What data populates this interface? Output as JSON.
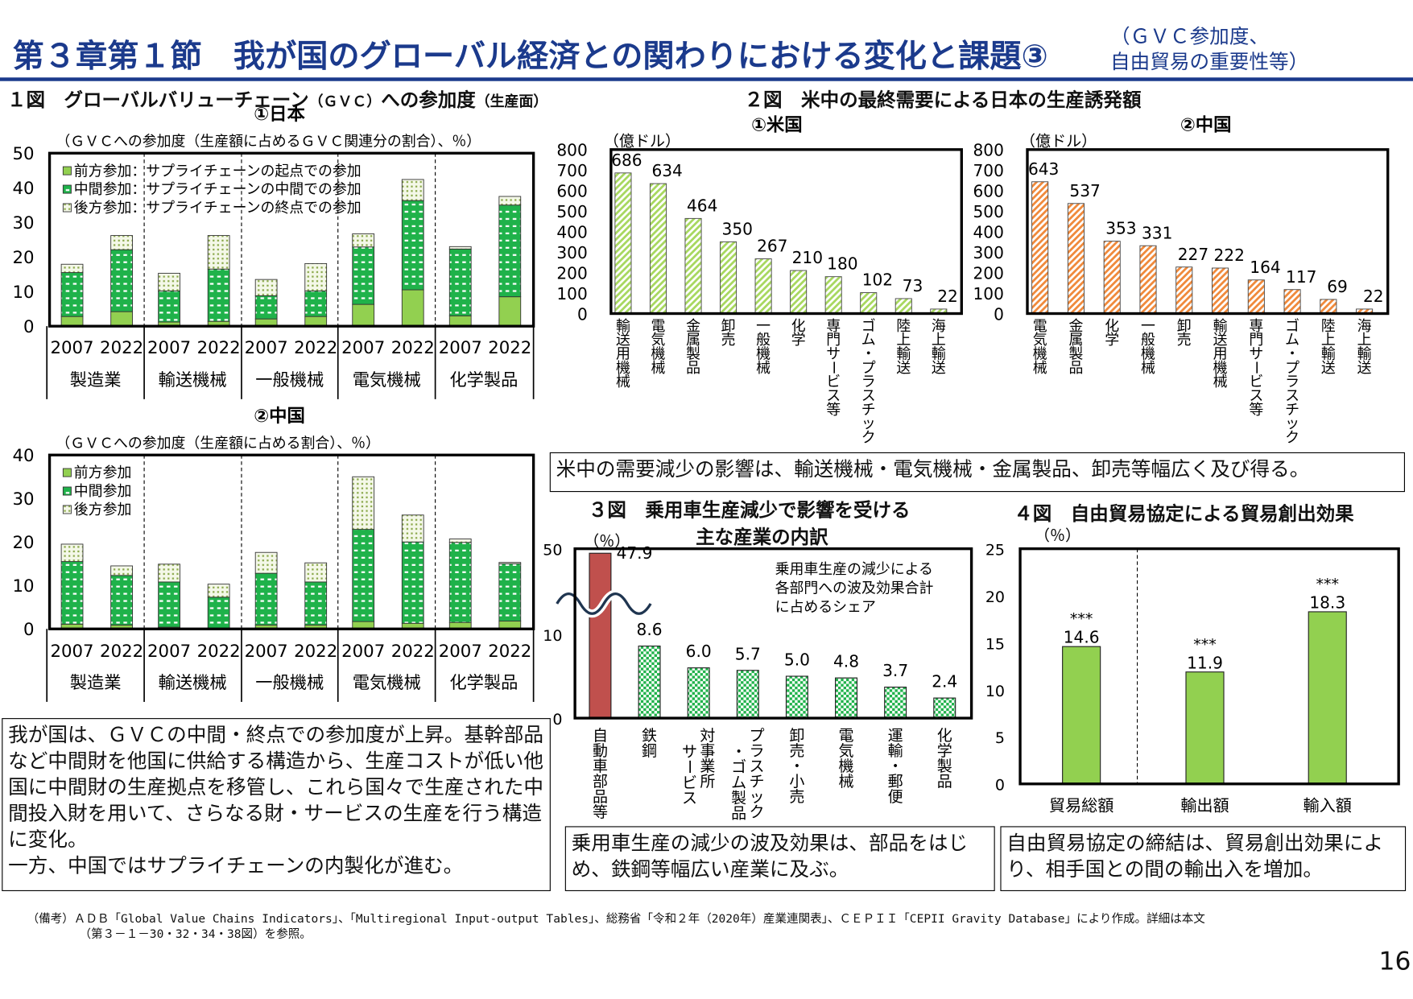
{
  "header": {
    "title": "第３章第１節　我が国のグローバル経済との関わりにおける変化と課題③",
    "subtitle_line1": "（ＧＶＣ参加度、",
    "subtitle_line2": "自由貿易の重要性等）"
  },
  "fig1": {
    "title": "１図　グローバルバリューチェーン",
    "title_small": "（ＧＶＣ）",
    "title2": "への参加度",
    "title_small2": "（生産面）"
  },
  "colors": {
    "forward": "#92d050",
    "middle": "#1fb24a",
    "backward": "#d8e8b0",
    "us_bar": "#a8d860",
    "cn_bar": "#f08a3c",
    "car_parts": "#c0504d",
    "fta": "#92d050",
    "navy": "#1b3a8c"
  },
  "text_boxes": {
    "gvc": "我が国は、ＧＶＣの中間・終点での参加度が上昇。基幹部品など中間財を他国に供給する構造から、生産コストが低い他国に中間財の生産拠点を移管し、これら国々で生産された中間投入財を用いて、さらなる財・サービスの生産を行う構造に変化。\n一方、中国ではサプライチェーンの内製化が進む。",
    "demand": "米中の需要減少の影響は、輸送機械・電気機械・金属製品、卸売等幅広く及び得る。",
    "car": "乗用車生産の減少の波及効果は、部品をはじめ、鉄鋼等幅広い産業に及ぶ。",
    "fta": "自由貿易協定の締結は、貿易創出効果により、相手国との間の輸出入を増加。"
  },
  "footnote": {
    "line1": "（備考）ＡＤＢ「Global Value Chains Indicators」、「Multiregional Input-output Tables」、総務省「令和２年（2020年）産業連関表」、ＣＥＰＩＩ「CEPII Gravity Database」により作成。詳細は本文",
    "line2": "（第３－１－30・32・34・38図）を参照。"
  },
  "page_number": "16",
  "chart_data": [
    {
      "id": "japan",
      "type": "bar",
      "stacked": true,
      "title": "①日本",
      "ylabel": "（ＧＶＣへの参加度（生産額に占めるＧＶＣ関連分の割合）、％）",
      "ylim": [
        0,
        50
      ],
      "yticks": [
        0,
        10,
        20,
        30,
        40,
        50
      ],
      "legend": [
        "前方参加：サプライチェーンの起点での参加",
        "中間参加：サプライチェーンの中間での参加",
        "後方参加：サプライチェーンの終点での参加"
      ],
      "legend_position": "top-left",
      "groups": [
        "製造業",
        "輸送機械",
        "一般機械",
        "電気機械",
        "化学製品"
      ],
      "years": [
        "2007",
        "2022"
      ],
      "series": [
        {
          "name": "前方参加",
          "values": [
            2.8,
            4.2,
            1.2,
            1.4,
            2.1,
            2.8,
            6.3,
            10.5,
            3.0,
            8.5
          ]
        },
        {
          "name": "中間参加",
          "values": [
            12.7,
            17.9,
            9.0,
            15.1,
            6.7,
            7.4,
            16.6,
            25.8,
            19.3,
            26.5
          ]
        },
        {
          "name": "後方参加",
          "values": [
            2.4,
            4.1,
            5.1,
            9.7,
            4.7,
            7.9,
            3.8,
            6.1,
            0.7,
            2.5
          ]
        }
      ]
    },
    {
      "id": "china",
      "type": "bar",
      "stacked": true,
      "title": "②中国",
      "ylabel": "（ＧＶＣへの参加度（生産額に占める割合）、％）",
      "ylim": [
        0,
        40
      ],
      "yticks": [
        0,
        10,
        20,
        30,
        40
      ],
      "legend": [
        "前方参加",
        "中間参加",
        "後方参加"
      ],
      "legend_position": "top-left",
      "groups": [
        "製造業",
        "輸送機械",
        "一般機械",
        "電気機械",
        "化学製品"
      ],
      "years": [
        "2007",
        "2022"
      ],
      "series": [
        {
          "name": "前方参加",
          "values": [
            1.1,
            0.9,
            0.4,
            0.1,
            0.9,
            0.9,
            1.7,
            1.3,
            1.5,
            1.8
          ]
        },
        {
          "name": "中間参加",
          "values": [
            14.4,
            11.4,
            10.4,
            7.2,
            11.9,
            9.9,
            21.2,
            18.7,
            18.4,
            13.2
          ]
        },
        {
          "name": "後方参加",
          "values": [
            4.0,
            2.2,
            4.1,
            3.0,
            4.8,
            4.4,
            12.1,
            6.2,
            0.8,
            0.3
          ]
        }
      ]
    },
    {
      "id": "fig2",
      "title": "２図　米中の最終需要による日本の生産誘発額",
      "charts": [
        {
          "id": "us",
          "type": "bar",
          "title": "①米国",
          "ylabel": "（億ドル）",
          "ylim": [
            0,
            800
          ],
          "yticks": [
            0,
            100,
            200,
            300,
            400,
            500,
            600,
            700,
            800
          ],
          "categories": [
            "輸送用機械",
            "電気機械",
            "金属製品",
            "卸売",
            "一般機械",
            "化学",
            "専門サービス等",
            "ゴム・プラスチック",
            "陸上輸送",
            "海上輸送"
          ],
          "values": [
            686,
            634,
            464,
            350,
            267,
            210,
            180,
            102,
            73,
            22
          ]
        },
        {
          "id": "cn",
          "type": "bar",
          "title": "②中国",
          "ylabel": "（億ドル）",
          "ylim": [
            0,
            800
          ],
          "yticks": [
            0,
            100,
            200,
            300,
            400,
            500,
            600,
            700,
            800
          ],
          "categories": [
            "電気機械",
            "金属製品",
            "化学",
            "一般機械",
            "卸売",
            "輸送用機械",
            "専門サービス等",
            "ゴム・プラスチック",
            "陸上輸送",
            "海上輸送"
          ],
          "values": [
            643,
            537,
            353,
            331,
            227,
            222,
            164,
            117,
            69,
            22
          ]
        }
      ]
    },
    {
      "id": "fig3",
      "type": "bar",
      "title": "３図　乗用車生産減少で影響を受ける",
      "title2": "主な産業の内訳",
      "ylabel": "（％）",
      "yticks": [
        0,
        10,
        50
      ],
      "axis_break": true,
      "annotation": "乗用車生産の減少による\n各部門への波及効果合計\nに占めるシェア",
      "categories": [
        "自動車部品等",
        "鉄鋼",
        "対事業所サービス",
        "プラスチック・ゴム製品",
        "卸売・小売",
        "電気機械",
        "運輸・郵便",
        "化学製品"
      ],
      "values": [
        47.9,
        8.6,
        6.0,
        5.7,
        5.0,
        4.8,
        3.7,
        2.4
      ]
    },
    {
      "id": "fig4",
      "type": "bar",
      "title": "４図　自由貿易協定による貿易創出効果",
      "ylabel": "（％）",
      "ylim": [
        0,
        25
      ],
      "yticks": [
        0,
        5,
        10,
        15,
        20,
        25
      ],
      "categories": [
        "貿易総額",
        "輸出額",
        "輸入額"
      ],
      "values": [
        14.6,
        11.9,
        18.3
      ],
      "significance": [
        "***",
        "***",
        "***"
      ]
    }
  ]
}
